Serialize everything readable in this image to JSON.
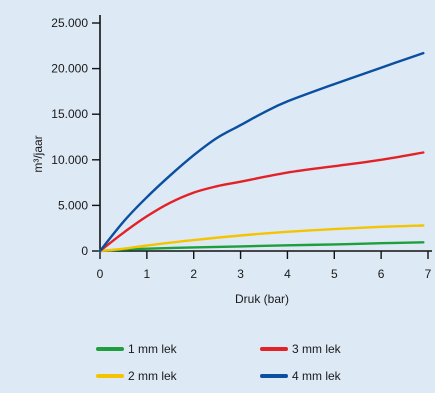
{
  "chart_data": {
    "type": "line",
    "xlabel": "Druk (bar)",
    "ylabel": "m³/jaar",
    "xlim": [
      0,
      7
    ],
    "ylim": [
      0,
      25000
    ],
    "x_ticks": [
      0,
      1,
      2,
      3,
      4,
      5,
      6,
      7
    ],
    "x_tick_labels": [
      "0",
      "1",
      "2",
      "3",
      "4",
      "5",
      "6",
      "7"
    ],
    "y_ticks": [
      0,
      5000,
      10000,
      15000,
      20000,
      25000
    ],
    "y_tick_labels": [
      "0",
      "5.000",
      "10.000",
      "15.000",
      "20.000",
      "25.000"
    ],
    "grid": false,
    "legend_position": "bottom",
    "series": [
      {
        "name": "1 mm lek",
        "color": "#1e9e3c",
        "x": [
          0,
          0.5,
          1,
          2,
          3,
          4,
          5,
          6,
          6.9
        ],
        "values": [
          0,
          150,
          250,
          400,
          500,
          620,
          720,
          850,
          950
        ]
      },
      {
        "name": "2 mm lek",
        "color": "#f5c400",
        "x": [
          0,
          0.5,
          1,
          2,
          3,
          4,
          5,
          6,
          6.9
        ],
        "values": [
          0,
          250,
          600,
          1200,
          1700,
          2100,
          2400,
          2650,
          2800
        ]
      },
      {
        "name": "3 mm lek",
        "color": "#e32227",
        "x": [
          0,
          0.5,
          1,
          1.5,
          2,
          2.5,
          3,
          4,
          5,
          6,
          6.9
        ],
        "values": [
          0,
          2000,
          3800,
          5300,
          6400,
          7100,
          7600,
          8600,
          9300,
          10000,
          10800
        ]
      },
      {
        "name": "4 mm lek",
        "color": "#0a4fa0",
        "x": [
          0,
          0.5,
          1,
          1.5,
          2,
          2.5,
          3,
          3.5,
          4,
          5,
          6,
          6.9
        ],
        "values": [
          0,
          3200,
          5900,
          8300,
          10500,
          12400,
          13800,
          15200,
          16400,
          18300,
          20100,
          21700
        ]
      }
    ],
    "legend": [
      {
        "label": "1 mm lek",
        "color": "#1e9e3c"
      },
      {
        "label": "3 mm lek",
        "color": "#e32227"
      },
      {
        "label": "2 mm lek",
        "color": "#f5c400"
      },
      {
        "label": "4 mm lek",
        "color": "#0a4fa0"
      }
    ]
  }
}
